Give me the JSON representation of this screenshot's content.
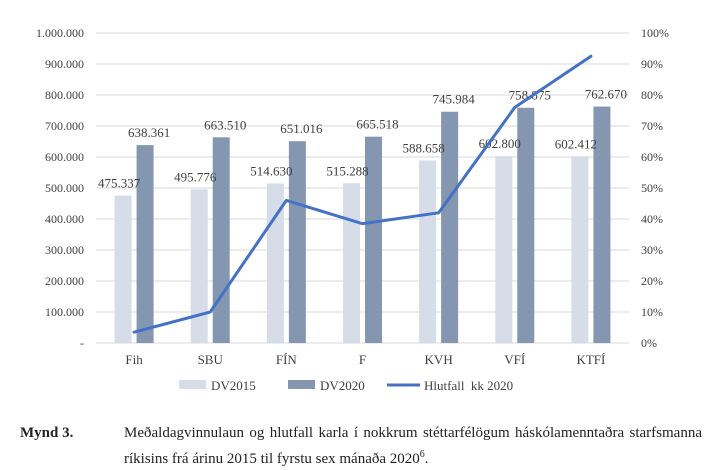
{
  "chart_data": {
    "type": "bar",
    "categories": [
      "Fih",
      "SBU",
      "FÍN",
      "F",
      "KVH",
      "VFÍ",
      "KTFÍ"
    ],
    "series": [
      {
        "name": "DV2015",
        "type": "bar",
        "color": "#d6dde8",
        "values": [
          475337,
          495776,
          514630,
          515288,
          588658,
          602800,
          602412
        ],
        "labels": [
          "475.337",
          "495.776",
          "514.630",
          "515.288",
          "588.658",
          "602.800",
          "602.412"
        ]
      },
      {
        "name": "DV2020",
        "type": "bar",
        "color": "#8496b0",
        "values": [
          638361,
          663510,
          651016,
          665518,
          745984,
          758875,
          762670
        ],
        "labels": [
          "638.361",
          "663.510",
          "651.016",
          "665.518",
          "745.984",
          "758.875",
          "762.670"
        ]
      },
      {
        "name": "Hlutfall  kk 2020",
        "type": "line",
        "axis": "right",
        "color": "#4472c4",
        "values": [
          3.5,
          10,
          46,
          38.5,
          42,
          76,
          92.5
        ]
      }
    ],
    "y_left": {
      "min": 0,
      "max": 1000000,
      "ticks": [
        "-",
        "100.000",
        "200.000",
        "300.000",
        "400.000",
        "500.000",
        "600.000",
        "700.000",
        "800.000",
        "900.000",
        "1.000.000"
      ]
    },
    "y_right": {
      "min": 0,
      "max": 100,
      "ticks": [
        "0%",
        "10%",
        "20%",
        "30%",
        "40%",
        "50%",
        "60%",
        "70%",
        "80%",
        "90%",
        "100%"
      ]
    },
    "grid": true,
    "legend_position": "bottom"
  },
  "caption": {
    "label": "Mynd 3.",
    "text_main": "Meðaldagvinnulaun og hlutfall karla í nokkrum stéttarfélögum háskólamenntaðra starfsmanna ríkisins frá árinu 2015 til fyrstu sex mánaða 2020",
    "superscript": "6",
    "text_end": "."
  }
}
